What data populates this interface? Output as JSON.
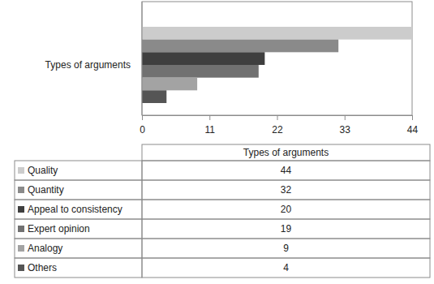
{
  "chart_data": {
    "type": "bar",
    "orientation": "horizontal",
    "categories": [
      "Types of arguments"
    ],
    "series": [
      {
        "name": "Quality",
        "color": "#cccccc",
        "values": [
          44
        ]
      },
      {
        "name": "Quantity",
        "color": "#8a8a8a",
        "values": [
          32
        ]
      },
      {
        "name": "Appeal to consistency",
        "color": "#3f3f3f",
        "values": [
          20
        ]
      },
      {
        "name": "Expert opinion",
        "color": "#717171",
        "values": [
          19
        ]
      },
      {
        "name": "Analogy",
        "color": "#a3a3a3",
        "values": [
          9
        ]
      },
      {
        "name": "Others",
        "color": "#555555",
        "values": [
          4
        ]
      }
    ],
    "xlim": [
      0,
      44
    ],
    "xticks": [
      0,
      11,
      22,
      33,
      44
    ],
    "grid": false,
    "legend": "bottom"
  }
}
